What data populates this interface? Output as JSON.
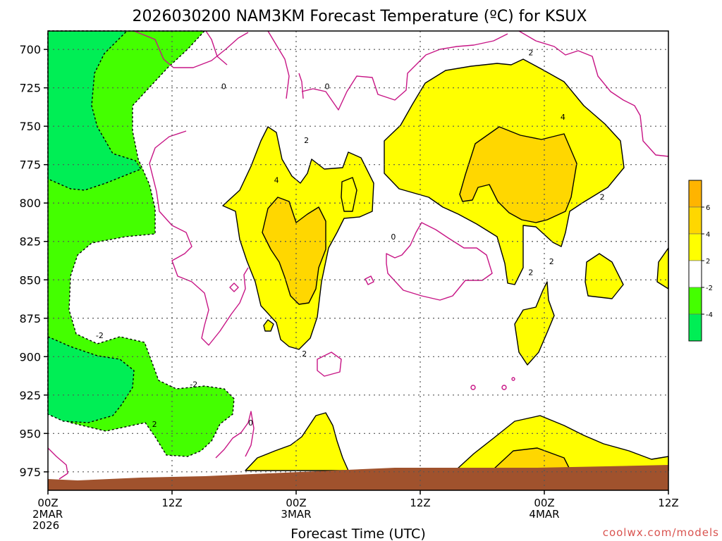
{
  "title": "2026030200 NAM3KM Forecast Temperature (ºC) for KSUX",
  "xlabel": "Forecast Time (UTC)",
  "credit": "coolwx.com/models",
  "colors": {
    "le_m4": "#00ee55",
    "m4_m2": "#44ff00",
    "m2_2": "#ffffff",
    "t2_4": "#ffff00",
    "t4_6": "#ffd700",
    "ge_6": "#ffb400",
    "ground": "#a0522d",
    "zero_line": "#c71585"
  },
  "chart_data": {
    "type": "heatmap",
    "title": "2026030200 NAM3KM Forecast Temperature (ºC) for KSUX",
    "xlabel": "Forecast Time (UTC)",
    "ylabel": "",
    "xlim": [
      0,
      60
    ],
    "ylim": [
      987,
      688
    ],
    "y_axis": "pressure (hPa), decreasing upward",
    "grid": true,
    "y_ticks": [
      700,
      725,
      750,
      775,
      800,
      825,
      850,
      875,
      900,
      925,
      950,
      975
    ],
    "x_ticks": [
      {
        "hour": 0,
        "lines": [
          "00Z",
          "2MAR",
          "2026"
        ]
      },
      {
        "hour": 12,
        "lines": [
          "12Z"
        ]
      },
      {
        "hour": 24,
        "lines": [
          "00Z",
          "3MAR"
        ]
      },
      {
        "hour": 36,
        "lines": [
          "12Z"
        ]
      },
      {
        "hour": 48,
        "lines": [
          "00Z",
          "4MAR"
        ]
      },
      {
        "hour": 60,
        "lines": [
          "12Z"
        ]
      }
    ],
    "colorbar": {
      "bins": [
        "<-4",
        "-4 to -2",
        "-2 to 2",
        "2 to 4",
        "4 to 6",
        ">6"
      ],
      "labels": [
        "6",
        "4",
        "2",
        "-2",
        "-4"
      ]
    },
    "contour_labels": [
      {
        "text": "0",
        "hour": 17.0,
        "p": 724
      },
      {
        "text": "0",
        "hour": 27.0,
        "p": 724
      },
      {
        "text": "2",
        "hour": 46.7,
        "p": 702
      },
      {
        "text": "4",
        "hour": 49.8,
        "p": 744
      },
      {
        "text": "2",
        "hour": 25.0,
        "p": 759
      },
      {
        "text": "4",
        "hour": 22.1,
        "p": 785
      },
      {
        "text": "2",
        "hour": 53.6,
        "p": 796
      },
      {
        "text": "0",
        "hour": 33.4,
        "p": 822
      },
      {
        "text": "2",
        "hour": 46.7,
        "p": 845
      },
      {
        "text": "2",
        "hour": 48.7,
        "p": 838
      },
      {
        "text": "-2",
        "hour": 5.0,
        "p": 886
      },
      {
        "text": "2",
        "hour": 24.8,
        "p": 898
      },
      {
        "text": "-2",
        "hour": 14.1,
        "p": 918
      },
      {
        "text": "2",
        "hour": 10.3,
        "p": 944
      },
      {
        "text": "0",
        "hour": 19.6,
        "p": 943
      }
    ]
  }
}
